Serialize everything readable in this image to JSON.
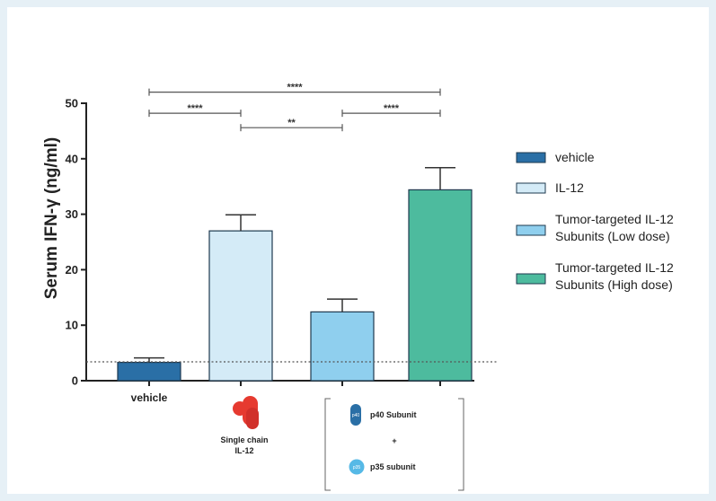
{
  "chart_data": {
    "type": "bar",
    "title": "",
    "xlabel": "",
    "ylabel": "Serum IFN-γ (ng/ml)",
    "ylim": [
      0,
      50
    ],
    "yticks": [
      0,
      10,
      20,
      30,
      40,
      50
    ],
    "categories": [
      "vehicle",
      "IL-12",
      "Tumor-targeted IL-12 Subunits (Low dose)",
      "Tumor-targeted IL-12 Subunits (High dose)"
    ],
    "values": [
      3.3,
      27.0,
      12.4,
      34.4
    ],
    "errors": [
      0.8,
      2.9,
      2.3,
      4.0
    ],
    "colors": [
      "#2a6fa6",
      "#d4ebf7",
      "#8fcfee",
      "#4dbb9e"
    ],
    "baseline": 3.4,
    "grid": false,
    "legend": {
      "position": "right",
      "entries": [
        {
          "lines": [
            "vehicle"
          ]
        },
        {
          "lines": [
            "IL-12"
          ]
        },
        {
          "lines": [
            "Tumor-targeted IL-12",
            "Subunits (Low dose)"
          ]
        },
        {
          "lines": [
            "Tumor-targeted IL-12",
            "Subunits (High dose)"
          ]
        }
      ]
    },
    "significance": [
      {
        "from": 0,
        "to": 3,
        "y": 52.0,
        "label": "****"
      },
      {
        "from": 0,
        "to": 1,
        "y": 48.2,
        "label": "****"
      },
      {
        "from": 2,
        "to": 3,
        "y": 48.2,
        "label": "****"
      },
      {
        "from": 1,
        "to": 2,
        "y": 45.6,
        "label": "**"
      }
    ],
    "x_annotations": {
      "vehicle_label": "vehicle",
      "single_chain": [
        "Single chain",
        "IL-12"
      ],
      "p40_label": "p40 Subunit",
      "plus": "+",
      "p35_label": "p35 subunit",
      "p40_icon_text": "p40",
      "p35_icon_text": "p35"
    }
  },
  "icons": {
    "single_chain": "red-protein-icon",
    "p40": "blue-capsule-icon",
    "p35": "light-blue-circle-icon"
  }
}
